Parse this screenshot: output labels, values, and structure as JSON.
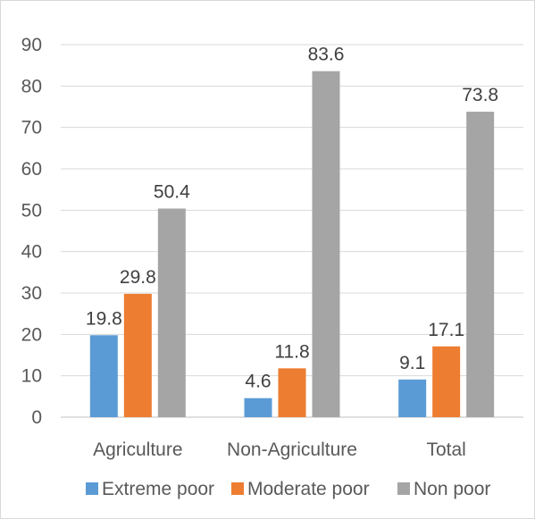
{
  "chart_data": {
    "type": "bar",
    "categories": [
      "Agriculture",
      "Non-Agriculture",
      "Total"
    ],
    "series": [
      {
        "name": "Extreme poor",
        "values": [
          19.8,
          4.6,
          9.1
        ],
        "color": "#5b9bd5"
      },
      {
        "name": "Moderate poor",
        "values": [
          29.8,
          11.8,
          17.1
        ],
        "color": "#ed7d31"
      },
      {
        "name": "Non poor",
        "values": [
          50.4,
          83.6,
          73.8
        ],
        "color": "#a5a5a5"
      }
    ],
    "ylim": [
      0,
      90
    ],
    "yticks": [
      "0",
      "10",
      "20",
      "30",
      "40",
      "50",
      "60",
      "70",
      "80",
      "90"
    ],
    "grid": true,
    "legend": "bottom"
  }
}
